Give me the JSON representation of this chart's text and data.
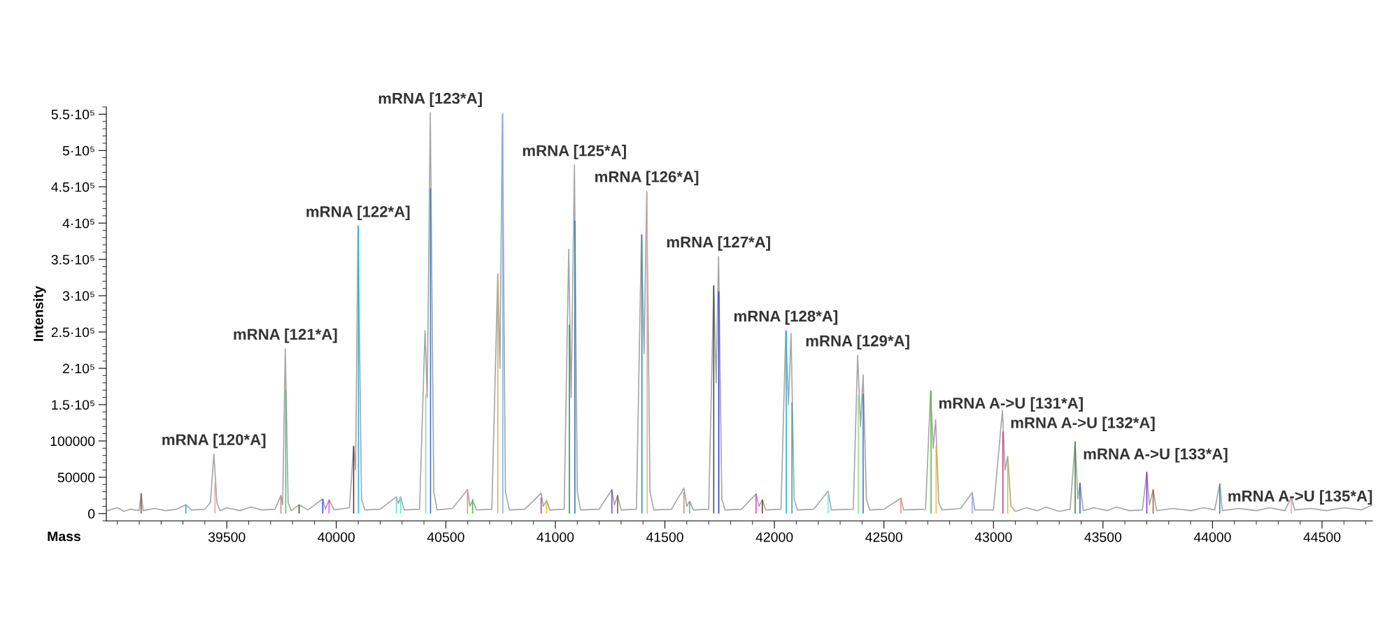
{
  "chart_data": {
    "type": "line",
    "xlabel": "Mass",
    "ylabel": "Intensity",
    "xlim": [
      38950,
      44730
    ],
    "ylim": [
      -10000,
      560000
    ],
    "xticks": [
      39500,
      40000,
      40500,
      41000,
      41500,
      42000,
      42500,
      43000,
      43500,
      44000,
      44500
    ],
    "yticks": [
      0,
      50000,
      100000,
      {
        "value": 150000,
        "label": "1.5·10⁵"
      },
      {
        "value": 200000,
        "label": "2·10⁵"
      },
      {
        "value": 250000,
        "label": "2.5·10⁵"
      },
      {
        "value": 300000,
        "label": "3·10⁵"
      },
      {
        "value": 350000,
        "label": "3.5·10⁵"
      },
      {
        "value": 400000,
        "label": "4·10⁵"
      },
      {
        "value": 450000,
        "label": "4.5·10⁵"
      },
      {
        "value": 500000,
        "label": "5·10⁵"
      },
      {
        "value": 550000,
        "label": "5.5·10⁵"
      }
    ],
    "grid": false,
    "legend": false,
    "series": [
      {
        "color": "#a6a6a6",
        "x": [
          38955,
          39000,
          39030,
          39060,
          39100,
          39109,
          39118,
          39170,
          39220,
          39270,
          39313,
          39340,
          39400,
          39425,
          39441,
          39455,
          39470,
          39500,
          39560,
          39610,
          39660,
          39720,
          39747,
          39755,
          39767,
          39780,
          39795,
          39830,
          39870,
          39938,
          39950,
          39967,
          39990,
          40060,
          40079,
          40088,
          40099,
          40115,
          40130,
          40200,
          40274,
          40283,
          40293,
          40310,
          40380,
          40405,
          40415,
          40429,
          40445,
          40460,
          40530,
          40599,
          40610,
          40622,
          40640,
          40710,
          40737,
          40747,
          40758,
          40772,
          40790,
          40860,
          40935,
          40945,
          40960,
          40975,
          41040,
          41061,
          41072,
          41087,
          41100,
          41115,
          41200,
          41258,
          41270,
          41284,
          41300,
          41370,
          41393,
          41405,
          41417,
          41432,
          41450,
          41530,
          41587,
          41600,
          41613,
          41630,
          41700,
          41723,
          41734,
          41745,
          41760,
          41775,
          41850,
          41916,
          41930,
          41945,
          41960,
          42030,
          42052,
          42064,
          42076,
          42090,
          42105,
          42180,
          42245,
          42260,
          42360,
          42380,
          42393,
          42405,
          42420,
          42435,
          42500,
          42577,
          42590,
          42690,
          42713,
          42725,
          42736,
          42750,
          42765,
          42850,
          42903,
          42915,
          43000,
          43041,
          43053,
          43065,
          43080,
          43100,
          43150,
          43200,
          43240,
          43300,
          43350,
          43373,
          43385,
          43395,
          43410,
          43460,
          43520,
          43560,
          43620,
          43680,
          43700,
          43712,
          43729,
          43745,
          43820,
          43900,
          43960,
          44010,
          44033,
          44045,
          44120,
          44200,
          44260,
          44330,
          44360,
          44375,
          44450,
          44520,
          44600,
          44680,
          44730
        ],
        "values": [
          4000,
          8000,
          3000,
          6000,
          4000,
          28000,
          4000,
          7000,
          4000,
          6000,
          12000,
          5000,
          6000,
          15000,
          82000,
          15000,
          4000,
          8000,
          4000,
          9000,
          5000,
          6000,
          25000,
          12000,
          227000,
          15000,
          4000,
          12000,
          5000,
          20000,
          6000,
          19000,
          5000,
          8000,
          93000,
          60000,
          396000,
          20000,
          5000,
          6000,
          23000,
          14000,
          23000,
          5000,
          6000,
          252000,
          160000,
          552000,
          30000,
          5000,
          7000,
          33000,
          10000,
          18000,
          5000,
          6000,
          330000,
          200000,
          550000,
          30000,
          5000,
          6000,
          28000,
          10000,
          18000,
          5000,
          6000,
          364000,
          160000,
          480000,
          30000,
          5000,
          6000,
          33000,
          12000,
          25000,
          5000,
          6000,
          384000,
          220000,
          444000,
          30000,
          5000,
          6000,
          35000,
          10000,
          17000,
          5000,
          6000,
          314000,
          180000,
          354000,
          20000,
          5000,
          6000,
          27000,
          10000,
          19000,
          5000,
          6000,
          252000,
          150000,
          248000,
          20000,
          5000,
          6000,
          31000,
          5000,
          6000,
          218000,
          120000,
          191000,
          20000,
          5000,
          6000,
          21000,
          5000,
          6000,
          169000,
          90000,
          129000,
          15000,
          5000,
          7000,
          29000,
          5000,
          5000,
          142000,
          60000,
          79000,
          10000,
          3000,
          8000,
          4000,
          9000,
          3000,
          6000,
          99000,
          20000,
          42000,
          4000,
          8000,
          4000,
          9000,
          4000,
          5000,
          57000,
          12000,
          33000,
          4000,
          7000,
          4000,
          8000,
          5000,
          41000,
          4000,
          7000,
          4000,
          8000,
          4000,
          22000,
          5000,
          7000,
          4000,
          8000,
          5000,
          12000
        ]
      },
      {
        "type": "bar",
        "x": [
          39109,
          39313,
          39446,
          39747,
          39769,
          39830,
          39938,
          39967,
          40079,
          40101,
          40274,
          40293,
          40408,
          40430,
          40599,
          40622,
          40737,
          40760,
          40935,
          40960,
          41064,
          41089,
          41258,
          41284,
          41395,
          41419,
          41587,
          41613,
          41723,
          41746,
          41916,
          41945,
          42054,
          42080,
          42245,
          42383,
          42405,
          42577,
          42715,
          42738,
          42903,
          43043,
          43065,
          43373,
          43395,
          43700,
          43729,
          44033,
          44360
        ],
        "values": [
          28000,
          12000,
          43000,
          25000,
          171000,
          12000,
          20000,
          19000,
          93000,
          396000,
          23000,
          23000,
          165000,
          448000,
          33000,
          20000,
          330000,
          551000,
          22000,
          18000,
          260000,
          403000,
          33000,
          25000,
          384000,
          442000,
          30000,
          17000,
          314000,
          306000,
          27000,
          19000,
          252000,
          153000,
          31000,
          163000,
          165000,
          21000,
          169000,
          93000,
          29000,
          113000,
          71000,
          99000,
          42000,
          57000,
          33000,
          41000,
          22000
        ],
        "colors": [
          "#8b5a2b",
          "#20b0c8",
          "#f4a0a0",
          "#c09090",
          "#3cc878",
          "#206020",
          "#4040ff",
          "#ff40ff",
          "#802020",
          "#20b0e0",
          "#80d0d0",
          "#60e0e0",
          "#80e080",
          "#4070d0",
          "#e09080",
          "#40c040",
          "#e0b030",
          "#80b0f0",
          "#c04090",
          "#e0c020",
          "#3a8a3a",
          "#3070b0",
          "#8040e0",
          "#8b5a2b",
          "#2090b0",
          "#f0a0a0",
          "#c09090",
          "#20d0a0",
          "#206020",
          "#3030e0",
          "#e040e0",
          "#6b3a2b",
          "#20b0e0",
          "#40a0a0",
          "#80e0e0",
          "#90e090",
          "#4070d0",
          "#f09080",
          "#50c030",
          "#f0c030",
          "#90b0f0",
          "#c04080",
          "#d0c020",
          "#309030",
          "#3060c0",
          "#8030e0",
          "#a06030",
          "#2090c0",
          "#f0a0b0"
        ]
      }
    ],
    "annotations": [
      {
        "text": "mRNA [120*A]",
        "x": 39441,
        "y": 82000
      },
      {
        "text": "mRNA [121*A]",
        "x": 39767,
        "y": 227000
      },
      {
        "text": "mRNA [122*A]",
        "x": 40099,
        "y": 396000
      },
      {
        "text": "mRNA [123*A]",
        "x": 40429,
        "y": 552000
      },
      {
        "text": "mRNA [125*A]",
        "x": 41087,
        "y": 480000
      },
      {
        "text": "mRNA [126*A]",
        "x": 41417,
        "y": 444000
      },
      {
        "text": "mRNA [127*A]",
        "x": 41745,
        "y": 354000
      },
      {
        "text": "mRNA [128*A]",
        "x": 42052,
        "y": 252000
      },
      {
        "text": "mRNA [129*A]",
        "x": 42380,
        "y": 218000
      },
      {
        "text": "mRNA A->U [131*A]",
        "x": 42713,
        "y": 169000
      },
      {
        "text": "mRNA A->U [132*A]",
        "x": 43041,
        "y": 142000
      },
      {
        "text": "mRNA A->U [133*A]",
        "x": 43373,
        "y": 99000
      },
      {
        "text": "mRNA A->U [135*A]",
        "x": 44033,
        "y": 41000
      }
    ]
  }
}
